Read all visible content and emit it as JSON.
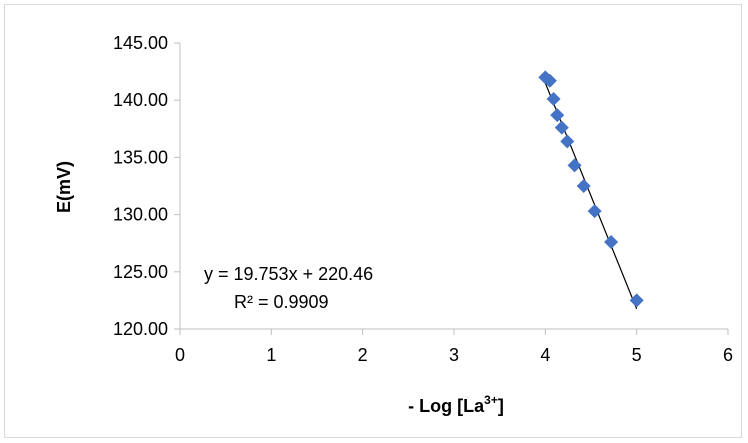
{
  "chart_data": {
    "type": "scatter",
    "title": "",
    "xlabel_main": "- Log [La",
    "xlabel_sup": "3+",
    "xlabel_end": "]",
    "ylabel": "E(mV)",
    "xlim": [
      0,
      6
    ],
    "ylim": [
      120,
      145
    ],
    "x_ticks": [
      "0",
      "1",
      "2",
      "3",
      "4",
      "5",
      "6"
    ],
    "y_ticks": [
      "120.00",
      "125.00",
      "130.00",
      "135.00",
      "140.00",
      "145.00"
    ],
    "grid": false,
    "legend": "none",
    "marker_color": "#4472c4",
    "marker": "diamond",
    "trendline": {
      "type": "linear",
      "equation": "y = 19.753x + 220.46",
      "r2_label": "R² = 0.9909",
      "color": "#000000"
    },
    "series": [
      {
        "x": [
          4.0,
          4.05,
          4.09,
          4.13,
          4.18,
          4.24,
          4.32,
          4.42,
          4.54,
          4.72,
          5.0
        ],
        "y": [
          142.0,
          141.7,
          140.1,
          138.7,
          137.6,
          136.4,
          134.3,
          132.5,
          130.3,
          127.6,
          122.5
        ]
      }
    ]
  }
}
